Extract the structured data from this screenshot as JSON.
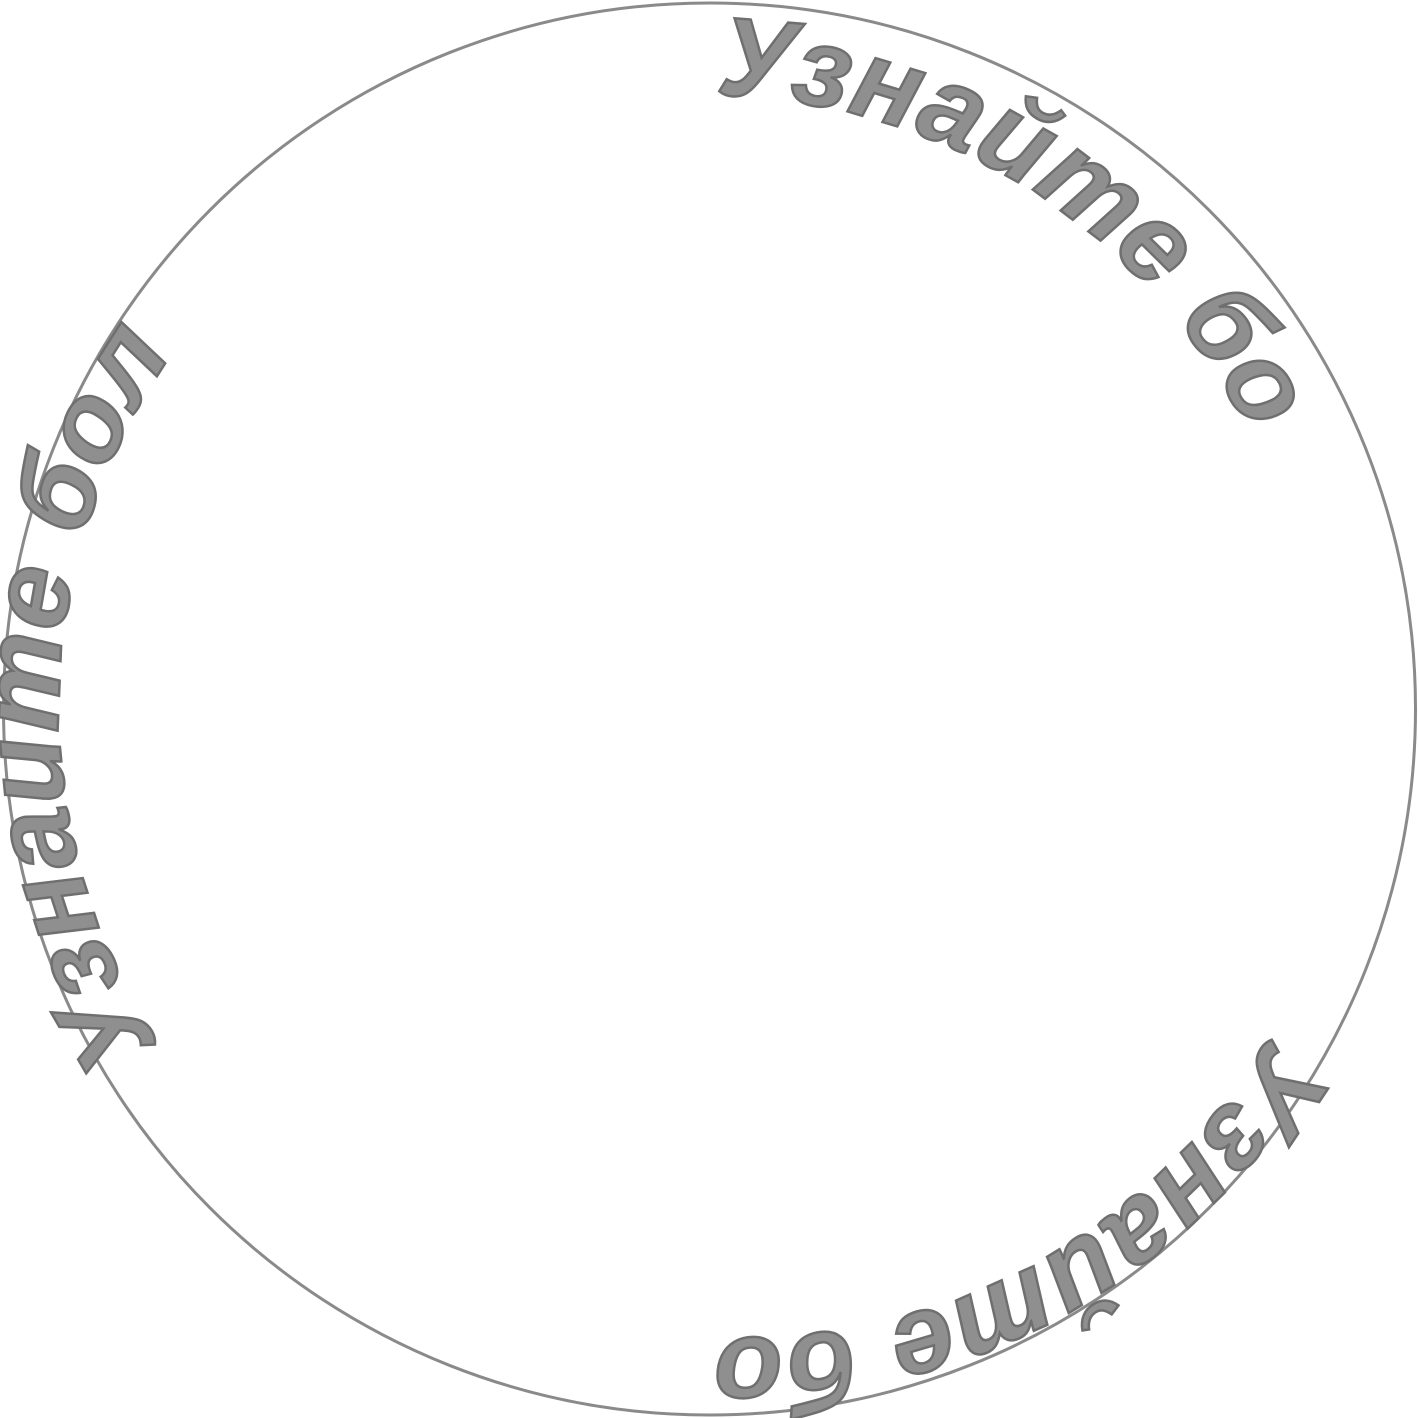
{
  "sticker": {
    "text_items": [
      {
        "label": "Узнайте больше"
      },
      {
        "label": "Узнайте больше"
      },
      {
        "label": "Узнайте больше"
      }
    ],
    "colors": {
      "text_fill": "#8f8f8f",
      "text_stroke": "#6f6f6f",
      "outline": "#8a8a8a",
      "background": "#ffffff"
    }
  }
}
